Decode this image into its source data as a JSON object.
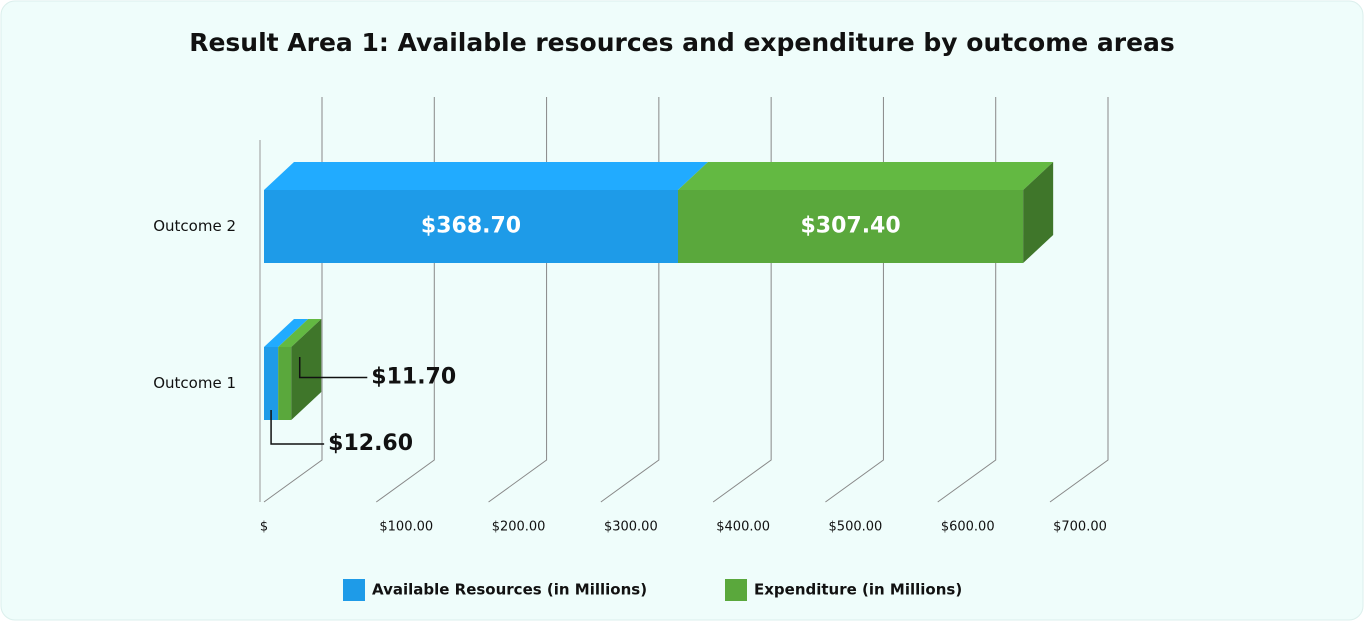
{
  "chart_data": {
    "type": "bar",
    "orientation": "horizontal",
    "stacked": true,
    "title": "Result Area 1: Available resources and expenditure by outcome areas",
    "categories": [
      "Outcome 1",
      "Outcome 2"
    ],
    "series": [
      {
        "name": "Available Resources (in Millions)",
        "color": "#1e9be8",
        "values": [
          12.6,
          368.7
        ],
        "value_labels": [
          "$12.60",
          "$368.70"
        ]
      },
      {
        "name": "Expenditure (in Millions)",
        "color": "#5aa83c",
        "values": [
          11.7,
          307.4
        ],
        "value_labels": [
          "$11.70",
          "$307.40"
        ]
      }
    ],
    "xlim": [
      0,
      700
    ],
    "xticks": [
      {
        "value": 0,
        "label": "$"
      },
      {
        "value": 100,
        "label": "$100.00"
      },
      {
        "value": 200,
        "label": "$200.00"
      },
      {
        "value": 300,
        "label": "$300.00"
      },
      {
        "value": 400,
        "label": "$400.00"
      },
      {
        "value": 500,
        "label": "$500.00"
      },
      {
        "value": 600,
        "label": "$600.00"
      },
      {
        "value": 700,
        "label": "$700.00"
      }
    ],
    "grid": true,
    "legend": "bottom"
  }
}
